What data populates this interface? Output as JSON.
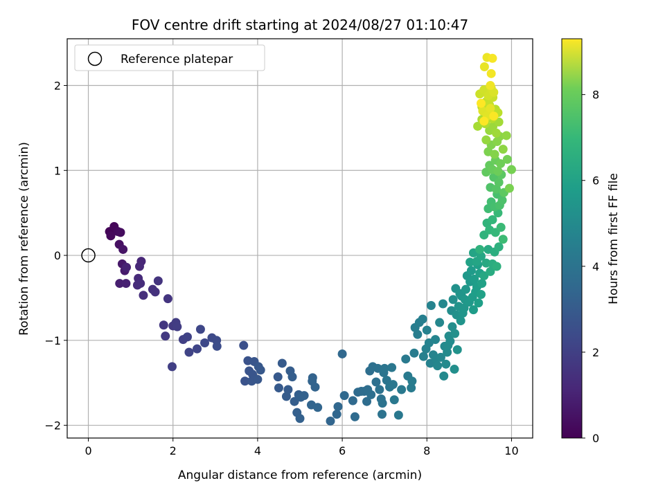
{
  "chart_data": {
    "type": "scatter",
    "title": "FOV centre drift starting at 2024/08/27 01:10:47",
    "xlabel": "Angular distance from reference (arcmin)",
    "ylabel": "Rotation from reference (arcmin)",
    "xlim": [
      -0.5,
      10.5
    ],
    "ylim": [
      -2.15,
      2.55
    ],
    "xticks": [
      0,
      2,
      4,
      6,
      8,
      10
    ],
    "yticks": [
      -2,
      -1,
      0,
      1,
      2
    ],
    "grid": true,
    "legend": {
      "position": "top-left",
      "entries": [
        "Reference platepar"
      ]
    },
    "reference_point": {
      "x": 0,
      "y": 0,
      "marker": "open-circle"
    },
    "colorbar": {
      "label": "Hours from first FF file",
      "colormap": "viridis",
      "range": [
        0,
        9.3
      ],
      "ticks": [
        0,
        2,
        4,
        6,
        8
      ]
    },
    "series": [
      {
        "points": [
          [
            0.5,
            0.28,
            0.1
          ],
          [
            0.61,
            0.34,
            0.15
          ],
          [
            0.53,
            0.23,
            0.2
          ],
          [
            0.7,
            0.28,
            0.25
          ],
          [
            0.76,
            0.27,
            0.3
          ],
          [
            0.73,
            0.13,
            0.4
          ],
          [
            0.82,
            0.07,
            0.5
          ],
          [
            0.8,
            -0.1,
            0.6
          ],
          [
            0.86,
            -0.18,
            0.7
          ],
          [
            0.74,
            -0.33,
            0.8
          ],
          [
            0.89,
            -0.33,
            0.85
          ],
          [
            0.9,
            -0.14,
            0.9
          ],
          [
            1.25,
            -0.07,
            1.0
          ],
          [
            1.21,
            -0.13,
            1.05
          ],
          [
            1.18,
            -0.27,
            1.1
          ],
          [
            1.16,
            -0.35,
            1.15
          ],
          [
            1.23,
            -0.33,
            1.2
          ],
          [
            1.3,
            -0.47,
            1.25
          ],
          [
            1.52,
            -0.4,
            1.3
          ],
          [
            1.58,
            -0.43,
            1.35
          ],
          [
            1.65,
            -0.3,
            1.4
          ],
          [
            1.88,
            -0.51,
            1.45
          ],
          [
            1.78,
            -0.82,
            1.5
          ],
          [
            1.82,
            -0.95,
            1.55
          ],
          [
            2.0,
            -0.83,
            1.6
          ],
          [
            2.07,
            -0.79,
            1.65
          ],
          [
            2.1,
            -0.84,
            1.7
          ],
          [
            1.98,
            -1.31,
            1.75
          ],
          [
            2.24,
            -0.99,
            1.8
          ],
          [
            2.34,
            -0.96,
            1.85
          ],
          [
            2.38,
            -1.14,
            1.9
          ],
          [
            2.57,
            -1.1,
            1.95
          ],
          [
            2.65,
            -0.87,
            2.0
          ],
          [
            2.75,
            -1.03,
            2.05
          ],
          [
            2.92,
            -0.97,
            2.1
          ],
          [
            3.03,
            -1.0,
            2.15
          ],
          [
            3.04,
            -1.07,
            2.2
          ],
          [
            3.67,
            -1.06,
            2.3
          ],
          [
            3.77,
            -1.24,
            2.35
          ],
          [
            3.7,
            -1.48,
            2.4
          ],
          [
            3.8,
            -1.36,
            2.42
          ],
          [
            3.92,
            -1.25,
            2.45
          ],
          [
            3.88,
            -1.4,
            2.48
          ],
          [
            3.86,
            -1.48,
            2.5
          ],
          [
            4.0,
            -1.46,
            2.52
          ],
          [
            4.02,
            -1.31,
            2.55
          ],
          [
            4.07,
            -1.35,
            2.58
          ],
          [
            4.48,
            -1.43,
            2.6
          ],
          [
            4.5,
            -1.56,
            2.62
          ],
          [
            4.58,
            -1.27,
            2.65
          ],
          [
            4.72,
            -1.58,
            2.68
          ],
          [
            4.68,
            -1.66,
            2.7
          ],
          [
            4.77,
            -1.36,
            2.72
          ],
          [
            4.82,
            -1.43,
            2.75
          ],
          [
            4.87,
            -1.72,
            2.78
          ],
          [
            4.97,
            -1.64,
            2.8
          ],
          [
            4.93,
            -1.85,
            2.82
          ],
          [
            5.02,
            -1.67,
            2.85
          ],
          [
            5.0,
            -1.92,
            2.88
          ],
          [
            5.1,
            -1.65,
            2.9
          ],
          [
            5.3,
            -1.44,
            2.92
          ],
          [
            5.29,
            -1.48,
            2.95
          ],
          [
            5.36,
            -1.55,
            2.98
          ],
          [
            5.27,
            -1.76,
            3.0
          ],
          [
            5.42,
            -1.79,
            3.02
          ],
          [
            5.72,
            -1.95,
            3.05
          ],
          [
            5.87,
            -1.87,
            3.08
          ],
          [
            5.9,
            -1.78,
            3.1
          ],
          [
            6.0,
            -1.16,
            3.12
          ],
          [
            6.05,
            -1.65,
            3.15
          ],
          [
            6.25,
            -1.71,
            3.18
          ],
          [
            6.3,
            -1.9,
            3.2
          ],
          [
            6.37,
            -1.61,
            3.22
          ],
          [
            6.45,
            -1.6,
            3.25
          ],
          [
            6.52,
            -1.6,
            3.28
          ],
          [
            6.58,
            -1.72,
            3.3
          ],
          [
            6.6,
            -1.58,
            3.33
          ],
          [
            6.65,
            -1.36,
            3.35
          ],
          [
            6.68,
            -1.64,
            3.38
          ],
          [
            6.72,
            -1.31,
            3.4
          ],
          [
            6.8,
            -1.49,
            3.42
          ],
          [
            6.84,
            -1.33,
            3.45
          ],
          [
            6.88,
            -1.58,
            3.48
          ],
          [
            6.92,
            -1.69,
            3.5
          ],
          [
            6.94,
            -1.87,
            3.52
          ],
          [
            6.95,
            -1.74,
            3.55
          ],
          [
            6.98,
            -1.38,
            3.58
          ],
          [
            7.0,
            -1.33,
            3.6
          ],
          [
            7.05,
            -1.47,
            3.62
          ],
          [
            7.12,
            -1.55,
            3.65
          ],
          [
            7.17,
            -1.32,
            3.68
          ],
          [
            7.2,
            -1.52,
            3.7
          ],
          [
            7.23,
            -1.7,
            3.72
          ],
          [
            7.33,
            -1.88,
            3.75
          ],
          [
            7.4,
            -1.58,
            3.78
          ],
          [
            7.5,
            -1.22,
            3.8
          ],
          [
            7.55,
            -1.42,
            3.82
          ],
          [
            7.63,
            -1.56,
            3.85
          ],
          [
            7.65,
            -1.48,
            3.88
          ],
          [
            7.7,
            -1.15,
            3.9
          ],
          [
            7.72,
            -0.85,
            3.92
          ],
          [
            7.78,
            -0.93,
            3.95
          ],
          [
            7.82,
            -0.79,
            3.98
          ],
          [
            7.9,
            -0.75,
            4.0
          ],
          [
            7.92,
            -1.19,
            4.05
          ],
          [
            7.98,
            -1.1,
            4.08
          ],
          [
            8.0,
            -0.88,
            4.1
          ],
          [
            8.05,
            -1.03,
            4.12
          ],
          [
            8.08,
            -1.27,
            4.15
          ],
          [
            8.1,
            -0.59,
            4.18
          ],
          [
            8.15,
            -1.17,
            4.2
          ],
          [
            8.2,
            -0.99,
            4.22
          ],
          [
            8.22,
            -1.22,
            4.25
          ],
          [
            8.25,
            -1.3,
            4.28
          ],
          [
            8.3,
            -0.79,
            4.3
          ],
          [
            8.33,
            -1.2,
            4.32
          ],
          [
            8.38,
            -0.57,
            4.35
          ],
          [
            8.4,
            -1.42,
            4.38
          ],
          [
            8.42,
            -1.07,
            4.4
          ],
          [
            8.45,
            -1.28,
            4.42
          ],
          [
            8.48,
            -1.14,
            4.45
          ],
          [
            8.5,
            -1.06,
            4.48
          ],
          [
            8.52,
            -0.95,
            4.5
          ],
          [
            8.55,
            -1.01,
            4.52
          ],
          [
            8.58,
            -0.65,
            4.55
          ],
          [
            8.6,
            -0.84,
            4.58
          ],
          [
            8.62,
            -0.52,
            4.6
          ],
          [
            8.65,
            -1.34,
            4.62
          ],
          [
            8.66,
            -0.92,
            4.65
          ],
          [
            8.68,
            -0.39,
            4.68
          ],
          [
            8.7,
            -0.7,
            4.7
          ],
          [
            8.72,
            -1.11,
            4.72
          ],
          [
            8.75,
            -0.6,
            4.75
          ],
          [
            8.78,
            -0.45,
            4.78
          ],
          [
            8.8,
            -0.77,
            4.8
          ],
          [
            8.82,
            -0.48,
            4.82
          ],
          [
            8.85,
            -0.68,
            4.85
          ],
          [
            8.88,
            -0.62,
            4.88
          ],
          [
            8.9,
            -0.52,
            4.9
          ],
          [
            8.92,
            -0.4,
            4.92
          ],
          [
            8.95,
            -0.24,
            4.95
          ],
          [
            9.0,
            -0.55,
            4.98
          ],
          [
            9.02,
            -0.31,
            5.0
          ],
          [
            9.05,
            -0.18,
            5.05
          ],
          [
            9.08,
            -0.49,
            5.08
          ],
          [
            9.1,
            -0.64,
            5.1
          ],
          [
            9.12,
            -0.28,
            5.12
          ],
          [
            9.15,
            -0.43,
            5.15
          ],
          [
            9.18,
            -0.37,
            5.18
          ],
          [
            9.2,
            -0.11,
            5.2
          ],
          [
            9.22,
            -0.56,
            5.22
          ],
          [
            9.25,
            -0.21,
            5.25
          ],
          [
            9.28,
            -0.46,
            5.28
          ],
          [
            9.3,
            -0.33,
            5.3
          ],
          [
            9.02,
            -0.08,
            5.35
          ],
          [
            9.1,
            0.03,
            5.4
          ],
          [
            9.18,
            -0.07,
            5.45
          ],
          [
            9.28,
            -0.01,
            5.5
          ],
          [
            9.35,
            -0.24,
            5.55
          ],
          [
            9.4,
            -0.09,
            5.6
          ],
          [
            9.45,
            0.07,
            5.65
          ],
          [
            9.5,
            -0.19,
            5.7
          ],
          [
            9.55,
            -0.1,
            5.75
          ],
          [
            9.6,
            0.04,
            5.8
          ],
          [
            9.65,
            -0.13,
            5.85
          ],
          [
            9.7,
            0.1,
            5.9
          ],
          [
            9.25,
            0.07,
            5.95
          ],
          [
            9.35,
            0.24,
            6.0
          ],
          [
            9.42,
            0.38,
            6.05
          ],
          [
            9.48,
            0.3,
            6.1
          ],
          [
            9.55,
            0.42,
            6.15
          ],
          [
            9.62,
            0.27,
            6.2
          ],
          [
            9.68,
            0.5,
            6.25
          ],
          [
            9.75,
            0.33,
            6.3
          ],
          [
            9.8,
            0.19,
            6.35
          ],
          [
            9.45,
            0.55,
            6.4
          ],
          [
            9.52,
            0.63,
            6.45
          ],
          [
            9.6,
            0.57,
            6.5
          ],
          [
            9.66,
            0.72,
            6.55
          ],
          [
            9.72,
            0.59,
            6.6
          ],
          [
            9.78,
            0.65,
            6.65
          ],
          [
            9.5,
            0.8,
            6.7
          ],
          [
            9.58,
            0.92,
            6.75
          ],
          [
            9.64,
            0.78,
            6.8
          ],
          [
            9.7,
            0.86,
            6.85
          ],
          [
            9.76,
            0.95,
            6.9
          ],
          [
            9.82,
            0.74,
            6.95
          ],
          [
            9.4,
            0.98,
            7.0
          ],
          [
            9.48,
            1.06,
            7.05
          ],
          [
            9.55,
            1.01,
            7.1
          ],
          [
            9.62,
            1.12,
            7.15
          ],
          [
            9.68,
            0.99,
            7.2
          ],
          [
            9.74,
            1.08,
            7.25
          ],
          [
            9.9,
            1.13,
            7.3
          ],
          [
            10.0,
            1.01,
            7.35
          ],
          [
            9.95,
            0.79,
            7.4
          ],
          [
            9.45,
            1.22,
            7.45
          ],
          [
            9.52,
            1.3,
            7.5
          ],
          [
            9.6,
            1.19,
            7.55
          ],
          [
            9.66,
            1.34,
            7.6
          ],
          [
            9.72,
            1.4,
            7.65
          ],
          [
            9.8,
            1.25,
            7.7
          ],
          [
            9.88,
            1.41,
            7.75
          ],
          [
            9.4,
            1.36,
            7.8
          ],
          [
            9.48,
            1.47,
            7.85
          ],
          [
            9.56,
            1.52,
            7.9
          ],
          [
            9.64,
            1.44,
            7.95
          ],
          [
            9.7,
            1.57,
            8.0
          ],
          [
            9.2,
            1.52,
            8.05
          ],
          [
            9.3,
            1.6,
            8.1
          ],
          [
            9.38,
            1.55,
            8.15
          ],
          [
            9.46,
            1.66,
            8.2
          ],
          [
            9.54,
            1.61,
            8.25
          ],
          [
            9.62,
            1.72,
            8.3
          ],
          [
            9.68,
            1.68,
            8.35
          ],
          [
            9.3,
            1.75,
            8.4
          ],
          [
            9.4,
            1.81,
            8.45
          ],
          [
            9.48,
            1.77,
            8.5
          ],
          [
            9.56,
            1.86,
            8.55
          ],
          [
            9.25,
            1.9,
            8.6
          ],
          [
            9.35,
            1.95,
            8.65
          ],
          [
            9.45,
            1.88,
            8.7
          ],
          [
            9.52,
            1.97,
            8.75
          ],
          [
            9.58,
            1.92,
            8.8
          ],
          [
            9.32,
            1.7,
            8.85
          ],
          [
            9.42,
            1.64,
            8.9
          ],
          [
            9.5,
            1.73,
            8.95
          ],
          [
            9.36,
            2.22,
            9.0
          ],
          [
            9.42,
            2.33,
            9.05
          ],
          [
            9.5,
            2.0,
            9.1
          ],
          [
            9.52,
            2.14,
            9.15
          ],
          [
            9.55,
            2.32,
            9.2
          ],
          [
            9.58,
            1.64,
            9.25
          ],
          [
            9.35,
            1.58,
            9.28
          ],
          [
            9.28,
            1.79,
            9.3
          ]
        ]
      }
    ]
  }
}
